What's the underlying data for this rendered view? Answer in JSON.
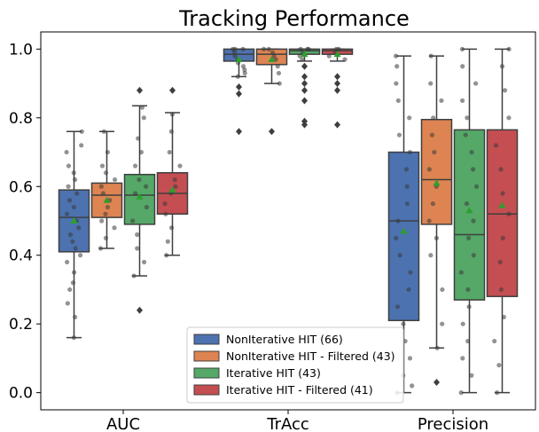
{
  "chart_data": {
    "type": "boxplot",
    "title": "Tracking Performance",
    "xlabel": "",
    "ylabel": "",
    "ylim": [
      -0.05,
      1.05
    ],
    "yticks": [
      0.0,
      0.2,
      0.4,
      0.6,
      0.8,
      1.0
    ],
    "ytick_labels": [
      "0.0",
      "0.2",
      "0.4",
      "0.6",
      "0.8",
      "1.0"
    ],
    "categories": [
      "AUC",
      "TrAcc",
      "Precision"
    ],
    "legend_position": "bottom-center",
    "grid": false,
    "series": [
      {
        "name": "NonIterative HIT (66)",
        "color": "#4c72b0",
        "mean_marker_color": "#2ca02c",
        "boxes": [
          {
            "whisker_low": 0.16,
            "q1": 0.41,
            "median": 0.51,
            "q3": 0.59,
            "whisker_high": 0.76,
            "mean": 0.5,
            "outliers": [],
            "points": [
              0.16,
              0.22,
              0.26,
              0.3,
              0.32,
              0.35,
              0.38,
              0.4,
              0.42,
              0.44,
              0.46,
              0.48,
              0.5,
              0.52,
              0.54,
              0.56,
              0.58,
              0.6,
              0.62,
              0.64,
              0.66,
              0.7,
              0.72,
              0.76
            ]
          },
          {
            "whisker_low": 0.92,
            "q1": 0.965,
            "median": 0.985,
            "q3": 1.0,
            "whisker_high": 1.0,
            "mean": 0.97,
            "outliers": [
              0.76,
              0.87,
              0.89
            ],
            "points": [
              0.92,
              0.94,
              0.96,
              0.97,
              0.98,
              0.99,
              1.0,
              1.0,
              1.0,
              0.95,
              0.93
            ]
          },
          {
            "whisker_low": 0.0,
            "q1": 0.21,
            "median": 0.5,
            "q3": 0.7,
            "whisker_high": 0.98,
            "mean": 0.47,
            "outliers": [],
            "points": [
              0.0,
              0.02,
              0.05,
              0.1,
              0.15,
              0.2,
              0.25,
              0.3,
              0.35,
              0.4,
              0.45,
              0.5,
              0.55,
              0.6,
              0.65,
              0.7,
              0.75,
              0.8,
              0.85,
              0.9,
              0.95,
              0.98
            ]
          }
        ]
      },
      {
        "name": "NonIterative HIT - Filtered (43)",
        "color": "#dd8452",
        "mean_marker_color": "#2ca02c",
        "boxes": [
          {
            "whisker_low": 0.42,
            "q1": 0.51,
            "median": 0.575,
            "q3": 0.61,
            "whisker_high": 0.76,
            "mean": 0.56,
            "outliers": [],
            "points": [
              0.42,
              0.45,
              0.48,
              0.5,
              0.52,
              0.54,
              0.56,
              0.58,
              0.6,
              0.62,
              0.64,
              0.66,
              0.7,
              0.76
            ]
          },
          {
            "whisker_low": 0.9,
            "q1": 0.955,
            "median": 0.985,
            "q3": 1.0,
            "whisker_high": 1.0,
            "mean": 0.97,
            "outliers": [
              0.76
            ],
            "points": [
              0.9,
              0.93,
              0.95,
              0.97,
              0.98,
              0.99,
              1.0,
              1.0
            ]
          },
          {
            "whisker_low": 0.13,
            "q1": 0.49,
            "median": 0.62,
            "q3": 0.795,
            "whisker_high": 0.98,
            "mean": 0.61,
            "outliers": [
              0.03
            ],
            "points": [
              0.13,
              0.2,
              0.3,
              0.4,
              0.45,
              0.5,
              0.55,
              0.6,
              0.65,
              0.7,
              0.75,
              0.8,
              0.85,
              0.9,
              0.98
            ]
          }
        ]
      },
      {
        "name": "Iterative HIT (43)",
        "color": "#55a868",
        "mean_marker_color": "#2ca02c",
        "boxes": [
          {
            "whisker_low": 0.34,
            "q1": 0.49,
            "median": 0.575,
            "q3": 0.635,
            "whisker_high": 0.835,
            "mean": 0.57,
            "outliers": [
              0.24,
              0.88
            ],
            "points": [
              0.34,
              0.38,
              0.42,
              0.46,
              0.5,
              0.54,
              0.58,
              0.6,
              0.62,
              0.66,
              0.7,
              0.74,
              0.8,
              0.83
            ]
          },
          {
            "whisker_low": 0.965,
            "q1": 0.985,
            "median": 0.995,
            "q3": 1.0,
            "whisker_high": 1.0,
            "mean": 0.985,
            "outliers": [
              0.78,
              0.79,
              0.85,
              0.88,
              0.9,
              0.92,
              0.95
            ],
            "points": [
              0.97,
              0.98,
              0.99,
              1.0,
              1.0,
              1.0
            ]
          },
          {
            "whisker_low": 0.0,
            "q1": 0.27,
            "median": 0.46,
            "q3": 0.765,
            "whisker_high": 1.0,
            "mean": 0.53,
            "outliers": [],
            "points": [
              0.0,
              0.05,
              0.1,
              0.15,
              0.2,
              0.25,
              0.3,
              0.35,
              0.4,
              0.45,
              0.5,
              0.55,
              0.6,
              0.65,
              0.7,
              0.75,
              0.8,
              0.85,
              0.9,
              0.95,
              1.0
            ]
          }
        ]
      },
      {
        "name": "Iterative HIT - Filtered (41)",
        "color": "#c44e52",
        "mean_marker_color": "#2ca02c",
        "boxes": [
          {
            "whisker_low": 0.4,
            "q1": 0.52,
            "median": 0.58,
            "q3": 0.64,
            "whisker_high": 0.815,
            "mean": 0.59,
            "outliers": [
              0.88
            ],
            "points": [
              0.4,
              0.44,
              0.48,
              0.52,
              0.55,
              0.58,
              0.6,
              0.62,
              0.66,
              0.7,
              0.76,
              0.81
            ]
          },
          {
            "whisker_low": 0.965,
            "q1": 0.985,
            "median": 0.995,
            "q3": 1.0,
            "whisker_high": 1.0,
            "mean": 0.985,
            "outliers": [
              0.78,
              0.88,
              0.9,
              0.92
            ],
            "points": [
              0.97,
              0.98,
              0.99,
              1.0,
              1.0
            ]
          },
          {
            "whisker_low": 0.0,
            "q1": 0.28,
            "median": 0.52,
            "q3": 0.765,
            "whisker_high": 1.0,
            "mean": 0.545,
            "outliers": [],
            "points": [
              0.0,
              0.08,
              0.15,
              0.22,
              0.3,
              0.38,
              0.45,
              0.52,
              0.58,
              0.65,
              0.72,
              0.8,
              0.88,
              0.95,
              1.0
            ]
          }
        ]
      }
    ]
  }
}
